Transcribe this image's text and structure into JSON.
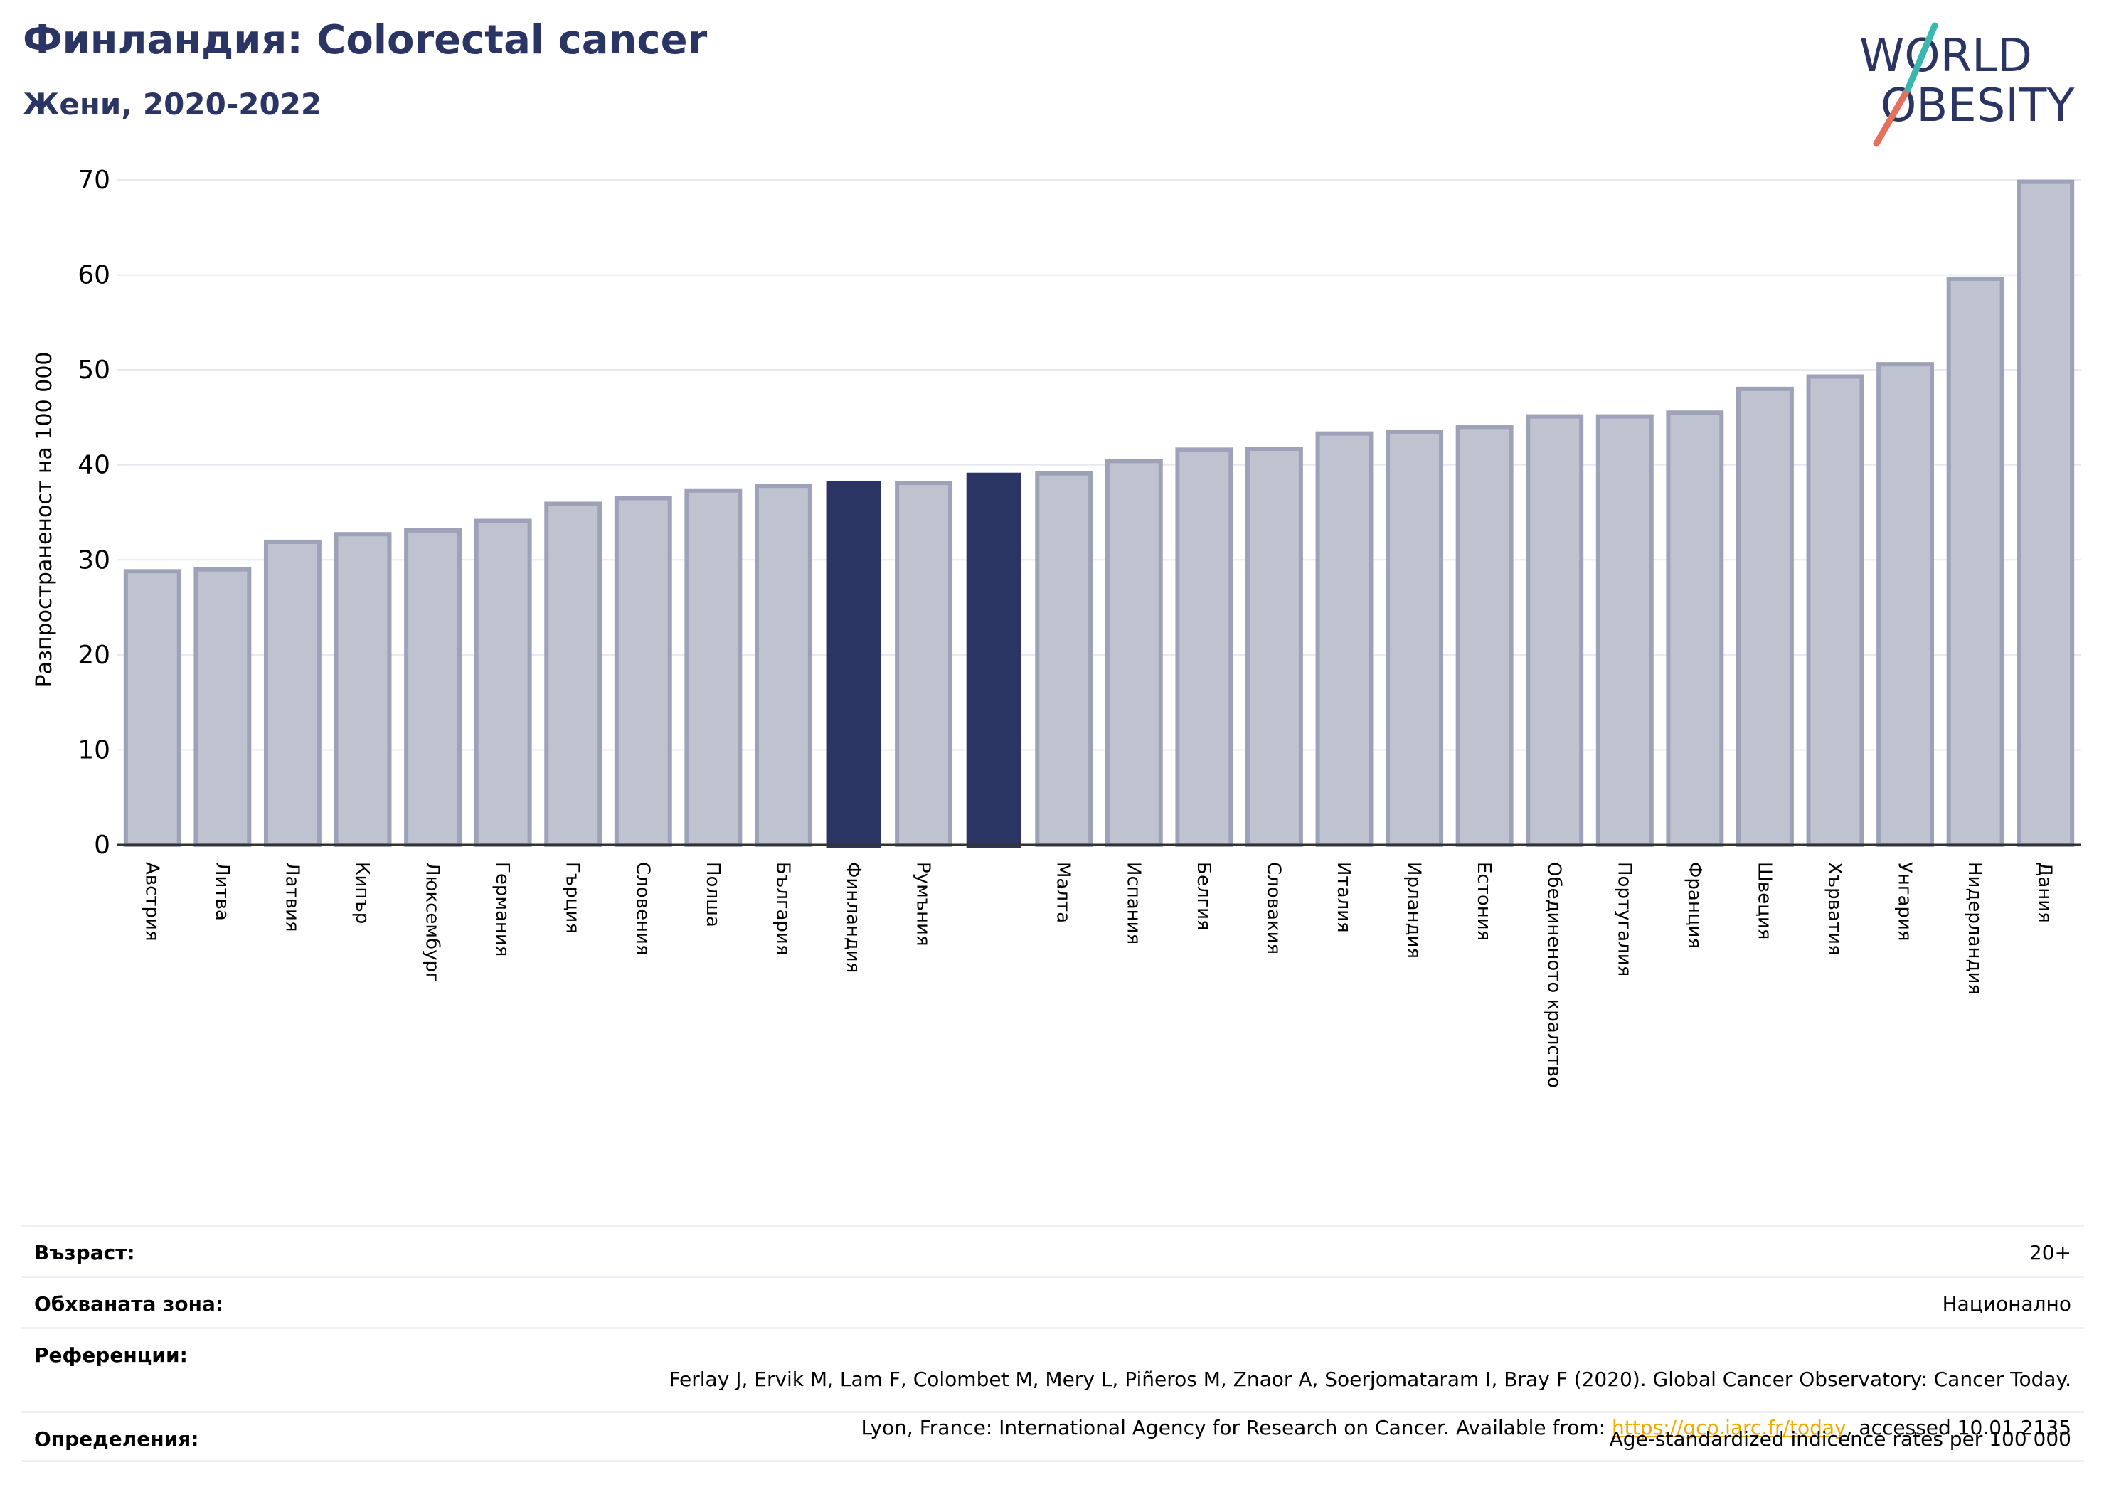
{
  "header": {
    "title": "Финландия: Colorectal cancer",
    "subtitle": "Жени, 2020-2022"
  },
  "logo": {
    "line1": "WORLD",
    "line2": "OBESITY"
  },
  "colors": {
    "highlight": "#2b3563",
    "bar": "#bfc2cf",
    "bar_edge": "#9da2b8",
    "title": "#2b3563",
    "link": "#f2a900"
  },
  "chart_data": {
    "type": "bar",
    "ylabel": "Разпространеност  на 100 000",
    "ylim": [
      0,
      70
    ],
    "yticks": [
      0,
      10,
      20,
      30,
      40,
      50,
      60,
      70
    ],
    "grid": true,
    "categories": [
      "Австрия",
      "Литва",
      "Латвия",
      "Кипър",
      "Люксембург",
      "Германия",
      "Гърция",
      "Словения",
      "Полша",
      "България",
      "Финландия",
      "Румъния",
      "",
      "Малта",
      "Испания",
      "Белгия",
      "Словакия",
      "Италия",
      "Ирландия",
      "Естония",
      "Обединеното кралство",
      "Португалия",
      "Франция",
      "Швеция",
      "Хърватия",
      "Унгария",
      "Нидерландия",
      "Дания"
    ],
    "values": [
      28.8,
      29.0,
      31.9,
      32.7,
      33.1,
      34.1,
      35.9,
      36.5,
      37.3,
      37.8,
      38.2,
      38.1,
      39.1,
      39.1,
      40.4,
      41.6,
      41.7,
      43.3,
      43.5,
      44.0,
      45.1,
      45.1,
      45.5,
      48.0,
      49.3,
      50.6,
      59.6,
      69.8
    ],
    "highlighted": [
      10,
      12
    ]
  },
  "meta": {
    "age_label": "Възраст:",
    "age_value": "20+",
    "area_label": "Обхваната зона:",
    "area_value": "Национално",
    "ref_label": "Референции:",
    "ref_line1": "Ferlay J, Ervik M, Lam F, Colombet M, Mery L, Piñeros M, Znaor A, Soerjomataram I, Bray F (2020). Global Cancer Observatory: Cancer Today.",
    "ref_line2_prefix": "Lyon, France: International Agency for Research on Cancer. Available from: ",
    "ref_link": "https://gco.iarc.fr/today",
    "ref_line2_suffix": ", accessed 10.01.2135",
    "def_label": "Определения:",
    "def_value": "Age-standardized indicence rates per 100 000"
  }
}
